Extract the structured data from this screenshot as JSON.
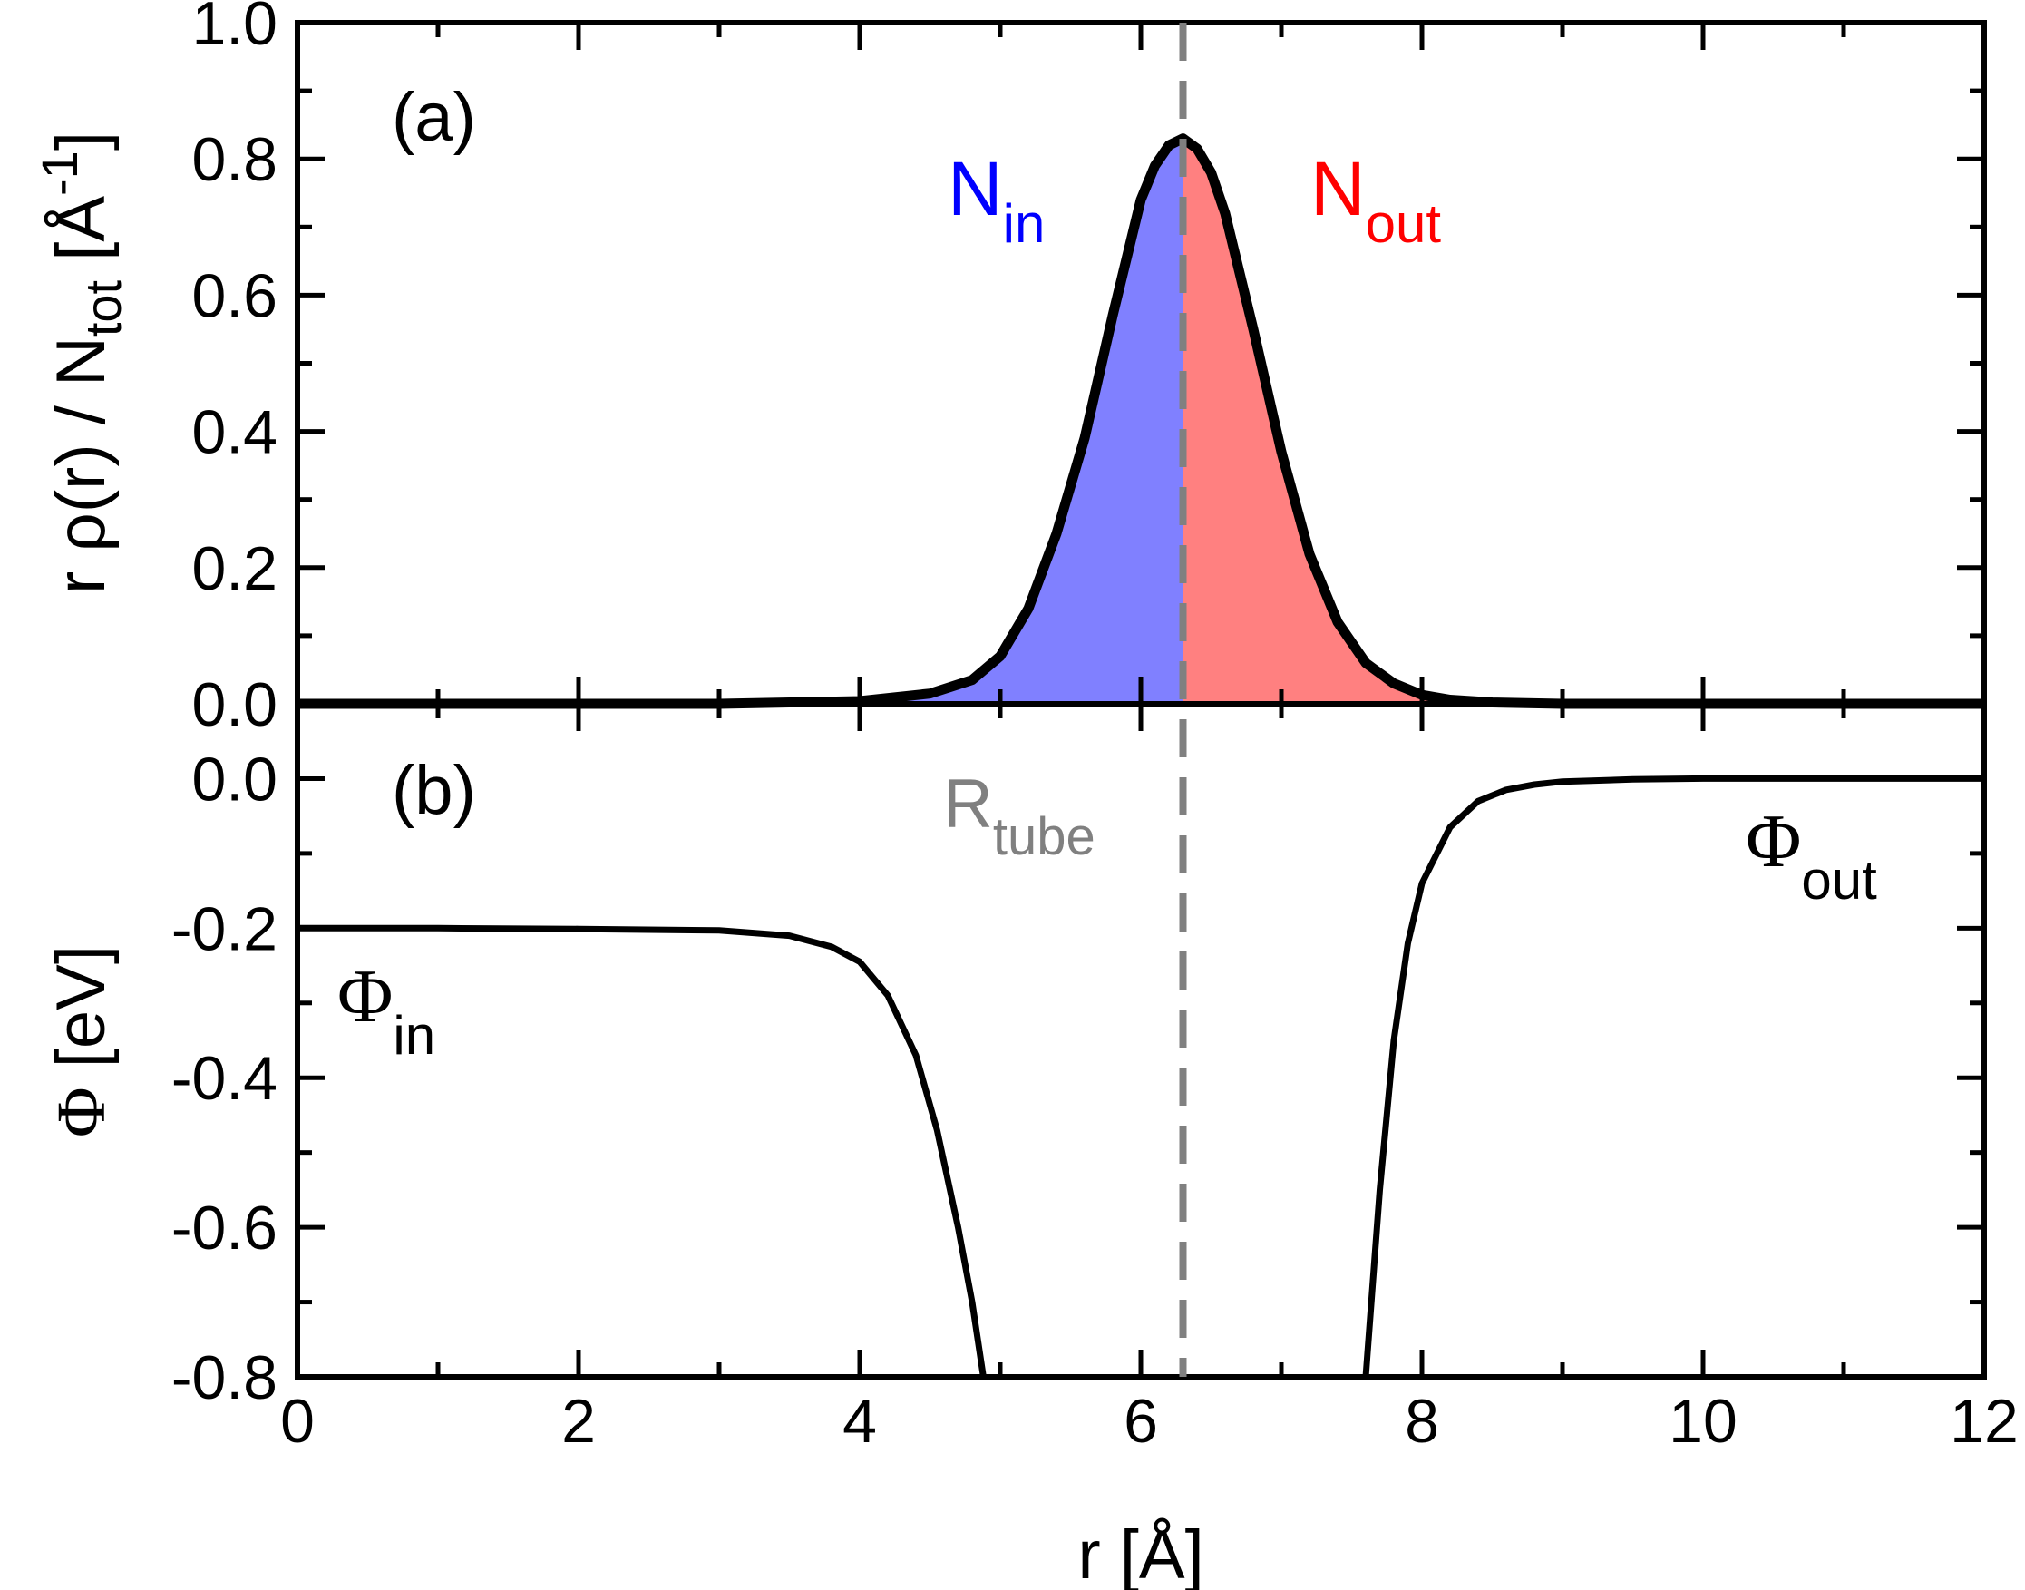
{
  "colors": {
    "axes": "#000000",
    "curve": "#000000",
    "n_in_fill": "#8080ff",
    "n_in_text": "#0000ff",
    "n_out_fill": "#ff8080",
    "n_out_text": "#ff0000",
    "r_tube_line": "#808080",
    "r_tube_text": "#808080"
  },
  "x_axis": {
    "label_main": "r [",
    "label_unit": "Å",
    "label_close": "]",
    "ticks": [
      "0",
      "2",
      "4",
      "6",
      "8",
      "10",
      "12"
    ]
  },
  "panel_a": {
    "label": "(a)",
    "ylabel": {
      "part1": "r ρ(r) / N",
      "sub": "tot",
      "part2": " [Å",
      "sup": "-1",
      "part3": "]"
    },
    "y_ticks": [
      "0.0",
      "0.2",
      "0.4",
      "0.6",
      "0.8",
      "1.0"
    ],
    "n_in": {
      "main": "N",
      "sub": "in"
    },
    "n_out": {
      "main": "N",
      "sub": "out"
    }
  },
  "panel_b": {
    "label": "(b)",
    "ylabel": {
      "phi": "Φ",
      "rest": " [eV]"
    },
    "y_ticks": [
      "0.0",
      "-0.2",
      "-0.4",
      "-0.6",
      "-0.8"
    ],
    "phi_in": {
      "main": "Φ",
      "sub": "in"
    },
    "phi_out": {
      "main": "Φ",
      "sub": "out"
    },
    "r_tube": {
      "main": "R",
      "sub": "tube"
    }
  },
  "chart_data": [
    {
      "type": "area",
      "panel": "(a)",
      "xlim": [
        0,
        12
      ],
      "ylim": [
        0,
        1.0
      ],
      "r_tube": 6.3,
      "x": [
        0,
        3.0,
        4.0,
        4.5,
        4.8,
        5.0,
        5.2,
        5.4,
        5.6,
        5.8,
        6.0,
        6.1,
        6.2,
        6.3,
        6.4,
        6.5,
        6.6,
        6.8,
        7.0,
        7.2,
        7.4,
        7.6,
        7.8,
        8.0,
        8.2,
        8.5,
        9.0,
        10.0,
        12.0
      ],
      "y": [
        0.0,
        0.0,
        0.004,
        0.015,
        0.035,
        0.07,
        0.14,
        0.25,
        0.39,
        0.57,
        0.74,
        0.79,
        0.82,
        0.83,
        0.815,
        0.78,
        0.72,
        0.55,
        0.37,
        0.22,
        0.12,
        0.06,
        0.03,
        0.013,
        0.006,
        0.002,
        0.0,
        0.0,
        0.0
      ]
    },
    {
      "type": "line",
      "panel": "(b)",
      "xlim": [
        0,
        12
      ],
      "ylim": [
        -0.8,
        0.1
      ],
      "r_tube": 6.3,
      "segments": [
        {
          "x": [
            0,
            1.0,
            2.0,
            3.0,
            3.5,
            3.8,
            4.0,
            4.2,
            4.4,
            4.55,
            4.7,
            4.8,
            4.88
          ],
          "y": [
            -0.2,
            -0.2,
            -0.201,
            -0.203,
            -0.21,
            -0.225,
            -0.245,
            -0.29,
            -0.37,
            -0.47,
            -0.6,
            -0.7,
            -0.8
          ]
        },
        {
          "x": [
            7.6,
            7.7,
            7.8,
            7.9,
            8.0,
            8.2,
            8.4,
            8.6,
            8.8,
            9.0,
            9.5,
            10.0,
            12.0
          ],
          "y": [
            -0.8,
            -0.55,
            -0.35,
            -0.22,
            -0.14,
            -0.065,
            -0.03,
            -0.015,
            -0.008,
            -0.004,
            -0.001,
            0.0,
            0.0
          ]
        }
      ]
    }
  ]
}
